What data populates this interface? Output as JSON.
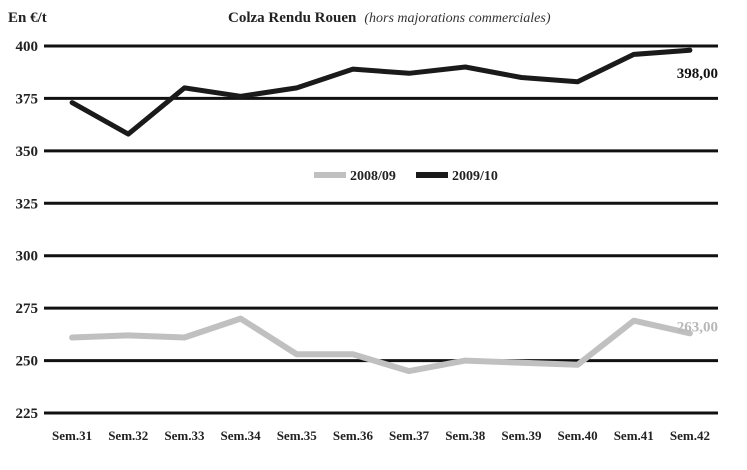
{
  "chart_data": {
    "type": "line",
    "title": "Colza Rendu Rouen",
    "subtitle": "(hors majorations commerciales)",
    "unit_label": "En €/t",
    "categories": [
      "Sem.31",
      "Sem.32",
      "Sem.33",
      "Sem.34",
      "Sem.35",
      "Sem.36",
      "Sem.37",
      "Sem.38",
      "Sem.39",
      "Sem.40",
      "Sem.41",
      "Sem.42"
    ],
    "ylim": [
      225,
      400
    ],
    "yticks": [
      400,
      375,
      350,
      325,
      300,
      275,
      250,
      225
    ],
    "grid": true,
    "legend_placement": "center",
    "series": [
      {
        "name": "2008/09",
        "color": "#c0c0c0",
        "values": [
          261,
          262,
          261,
          270,
          253,
          253,
          245,
          250,
          249,
          248,
          269,
          263
        ],
        "end_label": "263,00"
      },
      {
        "name": "2009/10",
        "color": "#1a1a1a",
        "values": [
          373,
          358,
          380,
          376,
          380,
          389,
          387,
          390,
          385,
          383,
          396,
          398
        ],
        "end_label": "398,00"
      }
    ]
  }
}
